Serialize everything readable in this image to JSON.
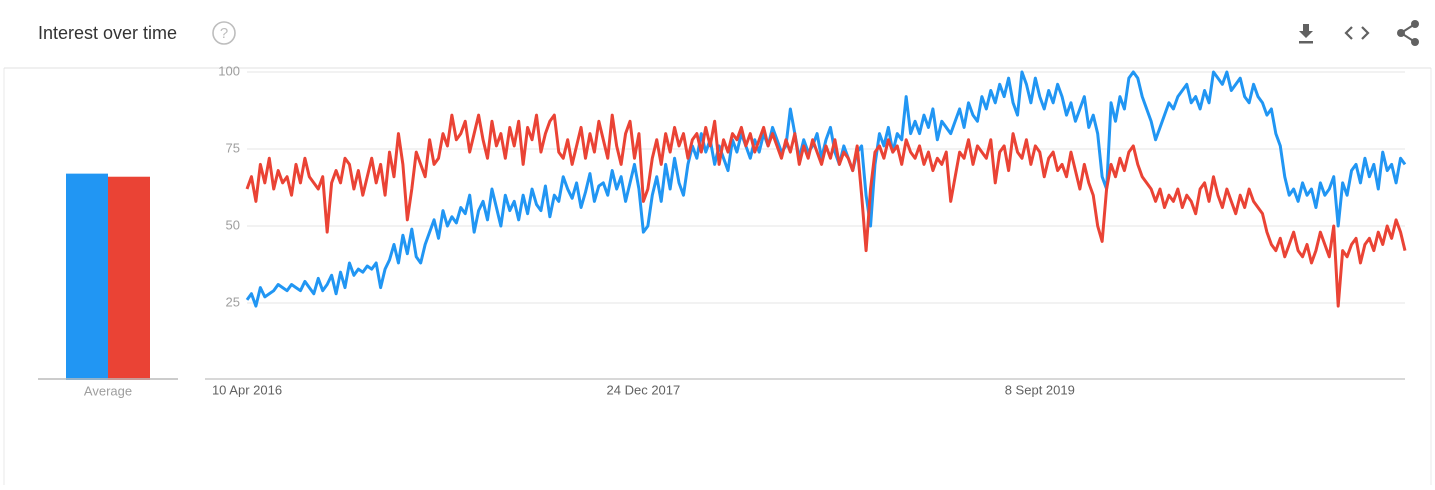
{
  "header": {
    "title": "Interest over time",
    "help_icon": "?"
  },
  "chart_data": [
    {
      "type": "line",
      "categories": [
        "10 Apr 2016",
        null,
        null,
        null,
        null,
        null,
        null,
        null,
        null,
        null,
        null,
        null,
        null,
        null,
        null,
        null,
        null,
        null,
        null,
        null,
        null,
        null,
        null,
        null,
        null,
        null,
        null,
        null,
        null,
        null,
        null,
        null,
        null,
        null,
        null,
        null,
        null,
        null,
        null,
        null,
        null,
        null,
        null,
        null,
        null,
        null,
        null,
        null,
        null,
        null,
        null,
        null,
        null,
        null,
        null,
        null,
        null,
        null,
        null,
        null,
        null,
        null,
        null,
        null,
        null,
        null,
        null,
        null,
        null,
        null,
        null,
        null,
        null,
        null,
        null,
        null,
        null,
        null,
        null,
        null,
        null,
        null,
        null,
        null,
        null,
        null,
        null,
        null,
        null,
        "24 Dec 2017",
        null,
        null,
        null,
        null,
        null,
        null,
        null,
        null,
        null,
        null,
        null,
        null,
        null,
        null,
        null,
        null,
        null,
        null,
        null,
        null,
        null,
        null,
        null,
        null,
        null,
        null,
        null,
        null,
        null,
        null,
        null,
        null,
        null,
        null,
        null,
        null,
        null,
        null,
        null,
        null,
        null,
        null,
        null,
        null,
        null,
        null,
        null,
        null,
        null,
        null,
        null,
        null,
        null,
        null,
        null,
        null,
        null,
        null,
        null,
        null,
        null,
        null,
        null,
        null,
        null,
        null,
        null,
        null,
        null,
        null,
        null,
        null,
        null,
        null,
        null,
        null,
        null,
        null,
        null,
        null,
        null,
        null,
        null,
        null,
        null,
        null,
        null,
        null,
        "8 Sept 2019",
        null,
        null,
        null,
        null,
        null,
        null,
        null,
        null,
        null,
        null,
        null,
        null,
        null,
        null,
        null,
        null,
        null,
        null,
        null,
        null,
        null,
        null,
        null,
        null,
        null,
        null,
        null,
        null,
        null,
        null,
        null,
        null,
        null,
        null,
        null,
        null,
        null,
        null,
        null,
        null,
        null,
        null,
        null,
        null,
        null,
        null,
        null,
        null,
        null,
        null,
        null,
        null,
        null,
        null,
        null,
        null,
        null,
        null,
        null,
        null,
        null,
        null,
        null,
        null,
        null,
        null,
        null,
        null,
        null,
        null,
        null,
        null,
        null,
        null,
        null,
        null,
        null,
        null,
        null,
        null,
        null,
        null
      ],
      "series": [
        {
          "color": "#2196f3",
          "values": [
            26,
            28,
            24,
            30,
            27,
            28,
            29,
            31,
            30,
            29,
            31,
            30,
            29,
            32,
            30,
            28,
            33,
            29,
            31,
            34,
            28,
            35,
            30,
            38,
            34,
            36,
            35,
            37,
            36,
            38,
            30,
            36,
            39,
            44,
            38,
            47,
            41,
            49,
            40,
            38,
            44,
            48,
            52,
            46,
            55,
            50,
            53,
            51,
            56,
            54,
            60,
            48,
            55,
            58,
            52,
            62,
            56,
            50,
            60,
            55,
            58,
            52,
            60,
            54,
            62,
            57,
            55,
            63,
            53,
            60,
            58,
            66,
            62,
            59,
            64,
            56,
            61,
            67,
            58,
            63,
            64,
            60,
            68,
            62,
            66,
            58,
            64,
            70,
            62,
            48,
            50,
            60,
            66,
            58,
            70,
            62,
            72,
            64,
            60,
            70,
            76,
            72,
            80,
            74,
            78,
            70,
            76,
            72,
            68,
            78,
            74,
            80,
            76,
            72,
            78,
            74,
            80,
            76,
            82,
            78,
            74,
            76,
            88,
            80,
            72,
            78,
            74,
            76,
            80,
            72,
            78,
            82,
            74,
            70,
            76,
            72,
            68,
            74,
            76,
            60,
            50,
            70,
            80,
            76,
            82,
            74,
            80,
            78,
            92,
            80,
            84,
            80,
            86,
            82,
            88,
            78,
            84,
            82,
            80,
            84,
            88,
            82,
            90,
            86,
            84,
            92,
            88,
            94,
            90,
            96,
            92,
            98,
            90,
            86,
            100,
            96,
            90,
            98,
            92,
            88,
            94,
            90,
            96,
            92,
            86,
            90,
            84,
            88,
            92,
            82,
            86,
            80,
            66,
            62,
            90,
            84,
            92,
            88,
            98,
            100,
            98,
            92,
            88,
            84,
            78,
            82,
            86,
            90,
            88,
            92,
            94,
            96,
            90,
            92,
            88,
            94,
            90,
            100,
            98,
            96,
            100,
            94,
            96,
            98,
            92,
            90,
            96,
            92,
            90,
            86,
            88,
            80,
            76,
            66,
            60,
            62,
            58,
            64,
            60,
            62,
            56,
            64,
            60,
            62,
            66,
            50,
            64,
            60,
            68,
            70,
            64,
            72,
            66,
            70,
            62,
            74,
            68,
            70,
            64,
            72,
            70
          ]
        },
        {
          "color": "#ea4335",
          "values": [
            62,
            66,
            58,
            70,
            64,
            72,
            62,
            68,
            64,
            66,
            60,
            70,
            64,
            72,
            66,
            64,
            62,
            66,
            48,
            64,
            68,
            64,
            72,
            70,
            62,
            68,
            60,
            66,
            72,
            64,
            70,
            60,
            74,
            66,
            80,
            70,
            52,
            62,
            74,
            70,
            66,
            78,
            70,
            72,
            80,
            76,
            86,
            78,
            80,
            84,
            74,
            80,
            86,
            78,
            72,
            84,
            76,
            80,
            72,
            82,
            76,
            84,
            70,
            82,
            78,
            86,
            74,
            80,
            84,
            86,
            74,
            72,
            78,
            70,
            76,
            82,
            72,
            80,
            74,
            84,
            78,
            72,
            86,
            76,
            70,
            80,
            84,
            72,
            80,
            58,
            62,
            72,
            78,
            70,
            80,
            74,
            82,
            76,
            80,
            72,
            78,
            80,
            74,
            82,
            76,
            84,
            70,
            78,
            74,
            80,
            78,
            82,
            76,
            80,
            74,
            78,
            82,
            76,
            80,
            76,
            72,
            78,
            74,
            80,
            70,
            76,
            72,
            78,
            74,
            70,
            76,
            72,
            78,
            70,
            74,
            72,
            68,
            76,
            60,
            42,
            62,
            74,
            76,
            72,
            78,
            74,
            76,
            70,
            78,
            74,
            72,
            76,
            70,
            74,
            68,
            72,
            70,
            74,
            58,
            66,
            74,
            72,
            78,
            70,
            76,
            74,
            72,
            78,
            64,
            74,
            76,
            68,
            80,
            74,
            72,
            78,
            70,
            76,
            74,
            66,
            72,
            74,
            68,
            70,
            66,
            74,
            68,
            62,
            70,
            64,
            60,
            50,
            45,
            62,
            70,
            66,
            72,
            68,
            74,
            76,
            70,
            66,
            64,
            62,
            58,
            62,
            56,
            60,
            58,
            62,
            56,
            60,
            58,
            54,
            62,
            64,
            58,
            66,
            60,
            56,
            62,
            58,
            54,
            60,
            56,
            62,
            58,
            56,
            54,
            48,
            44,
            42,
            46,
            40,
            44,
            48,
            42,
            40,
            44,
            38,
            42,
            48,
            44,
            40,
            50,
            24,
            42,
            40,
            44,
            46,
            38,
            44,
            46,
            42,
            48,
            44,
            50,
            46,
            52,
            48,
            42
          ]
        }
      ],
      "ylim": [
        0,
        100
      ],
      "yticks": [
        25,
        50,
        75,
        100
      ],
      "grid": true
    },
    {
      "type": "bar",
      "categories": [
        "Average"
      ],
      "series": [
        {
          "color": "#2196f3",
          "values": [
            67
          ]
        },
        {
          "color": "#ea4335",
          "values": [
            66
          ]
        }
      ],
      "ylim": [
        0,
        100
      ]
    }
  ]
}
